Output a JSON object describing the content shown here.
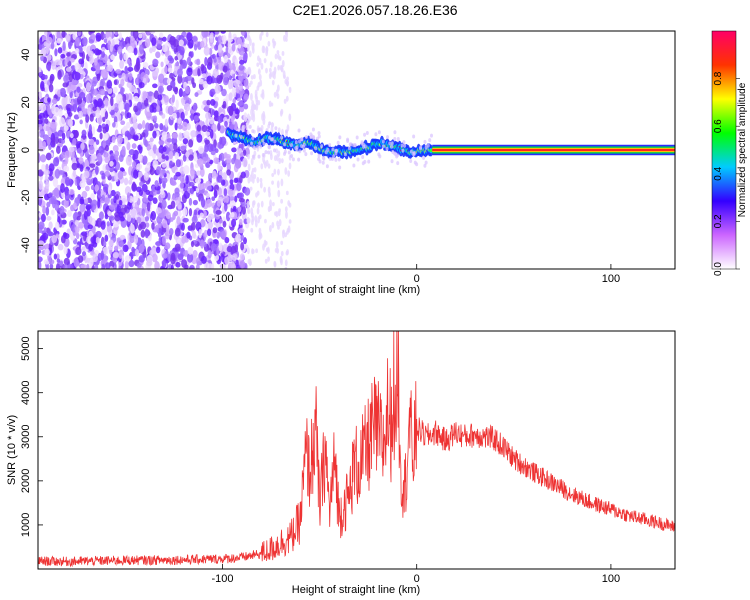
{
  "figure_title": "C2E1.2026.057.18.26.E36",
  "chart_data": [
    {
      "type": "heatmap",
      "title": "C2E1.2026.057.18.26.E36",
      "xlabel": "Height of straight line (km)",
      "ylabel": "Frequency (Hz)",
      "xlim": [
        -195,
        133
      ],
      "ylim": [
        -50,
        50
      ],
      "xticks": [
        -100,
        0,
        100
      ],
      "yticks": [
        -40,
        -20,
        0,
        20,
        40
      ],
      "grid": false,
      "colorbar": {
        "label": "Normalized spectral amplitude",
        "range": [
          0,
          1
        ],
        "ticks": [
          0.0,
          0.2,
          0.4,
          0.6,
          0.8
        ],
        "colors": [
          "#ffffff",
          "#cc66ff",
          "#3300ff",
          "#00ccff",
          "#00ff00",
          "#ffff00",
          "#ff3300",
          "#ff0066"
        ]
      },
      "regions": [
        {
          "x_from": -195,
          "x_to": -87,
          "y_from": -50,
          "y_to": 50,
          "amplitude": 0.15,
          "pattern": "scattered noise"
        },
        {
          "x_from": -87,
          "x_to": -65,
          "y_from": -50,
          "y_to": 50,
          "amplitude": 0.05,
          "pattern": "faint scattered noise"
        },
        {
          "x_from": -97,
          "x_to": 8,
          "y_from": -3,
          "y_to": 9,
          "amplitude": 0.45,
          "pattern": "broadened signal"
        },
        {
          "x_from": 8,
          "x_to": 133,
          "y_from": -1,
          "y_to": 1,
          "amplitude": 0.95,
          "pattern": "narrow carrier line"
        }
      ],
      "carrier_center": [
        {
          "x": -97,
          "y": 7
        },
        {
          "x": -90,
          "y": 5
        },
        {
          "x": -84,
          "y": 3
        },
        {
          "x": -78,
          "y": 5
        },
        {
          "x": -70,
          "y": 4
        },
        {
          "x": -62,
          "y": 2
        },
        {
          "x": -55,
          "y": 3
        },
        {
          "x": -48,
          "y": 0
        },
        {
          "x": -40,
          "y": -1
        },
        {
          "x": -30,
          "y": 0
        },
        {
          "x": -18,
          "y": 3
        },
        {
          "x": -10,
          "y": 1
        },
        {
          "x": -3,
          "y": -1
        },
        {
          "x": 5,
          "y": 0
        },
        {
          "x": 133,
          "y": 0
        }
      ]
    },
    {
      "type": "line",
      "xlabel": "Height of straight line (km)",
      "ylabel": "SNR (10 * v/v)",
      "xlim": [
        -195,
        133
      ],
      "ylim": [
        0,
        5400
      ],
      "xticks": [
        -100,
        0,
        100
      ],
      "yticks": [
        1000,
        2000,
        3000,
        4000,
        5000
      ],
      "grid": false,
      "line_color": "#ee3333",
      "series": [
        {
          "x": [
            -195,
            -180,
            -160,
            -140,
            -120,
            -100,
            -90,
            -80,
            -75,
            -70,
            -65,
            -60,
            -57,
            -55,
            -52,
            -50,
            -47,
            -45,
            -42,
            -40,
            -37,
            -35,
            -32,
            -30,
            -27,
            -25,
            -22,
            -20,
            -17,
            -15,
            -13,
            -12,
            -11,
            -10,
            -9,
            -8,
            -6,
            -4,
            -2,
            0,
            5,
            10,
            15,
            20,
            25,
            30,
            35,
            40,
            45,
            50,
            60,
            70,
            80,
            90,
            100,
            110,
            120,
            133
          ],
          "values": [
            180,
            170,
            190,
            200,
            210,
            230,
            260,
            350,
            450,
            600,
            700,
            1100,
            2600,
            2200,
            3200,
            1400,
            2700,
            1300,
            2500,
            1200,
            1500,
            1600,
            2400,
            2300,
            2600,
            2800,
            3200,
            3100,
            2800,
            3600,
            3200,
            4300,
            3000,
            5300,
            3600,
            2200,
            1800,
            3300,
            2600,
            3200,
            3000,
            3100,
            2900,
            3100,
            3000,
            3050,
            3000,
            2950,
            2750,
            2500,
            2200,
            1950,
            1700,
            1500,
            1350,
            1200,
            1100,
            950
          ]
        }
      ]
    }
  ]
}
